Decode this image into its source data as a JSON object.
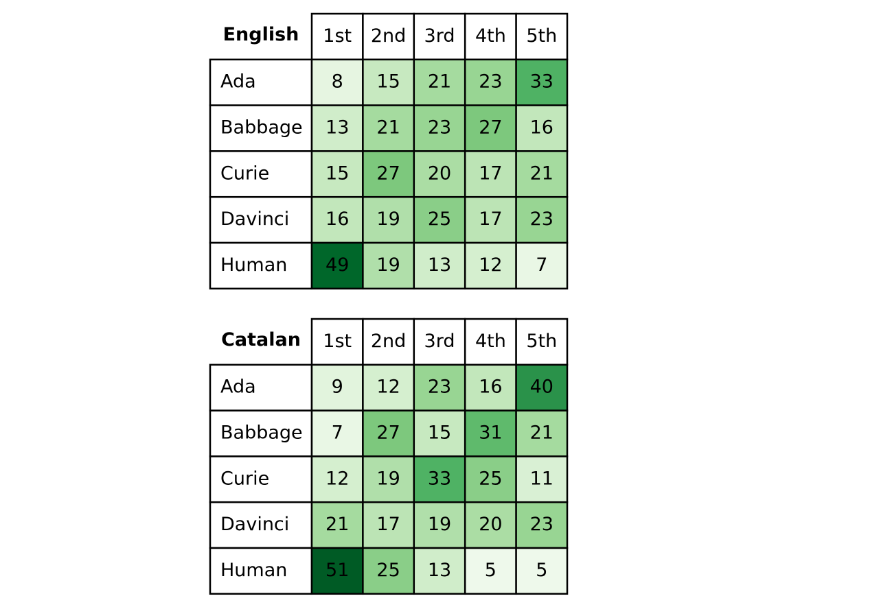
{
  "chart_data": [
    {
      "type": "heatmap",
      "title": "English",
      "columns": [
        "1st",
        "2nd",
        "3rd",
        "4th",
        "5th"
      ],
      "rows": [
        "Ada",
        "Babbage",
        "Curie",
        "Davinci",
        "Human"
      ],
      "values": [
        [
          8,
          15,
          21,
          23,
          33
        ],
        [
          13,
          21,
          23,
          27,
          16
        ],
        [
          15,
          27,
          20,
          17,
          21
        ],
        [
          16,
          19,
          25,
          17,
          23
        ],
        [
          49,
          19,
          13,
          12,
          7
        ]
      ],
      "colormap": "Greens",
      "vmin": 5,
      "vmax": 51
    },
    {
      "type": "heatmap",
      "title": "Catalan",
      "columns": [
        "1st",
        "2nd",
        "3rd",
        "4th",
        "5th"
      ],
      "rows": [
        "Ada",
        "Babbage",
        "Curie",
        "Davinci",
        "Human"
      ],
      "values": [
        [
          9,
          12,
          23,
          16,
          40
        ],
        [
          7,
          27,
          15,
          31,
          21
        ],
        [
          12,
          19,
          33,
          25,
          11
        ],
        [
          21,
          17,
          19,
          20,
          23
        ],
        [
          51,
          25,
          13,
          5,
          5
        ]
      ],
      "colormap": "Greens",
      "vmin": 5,
      "vmax": 51
    }
  ]
}
